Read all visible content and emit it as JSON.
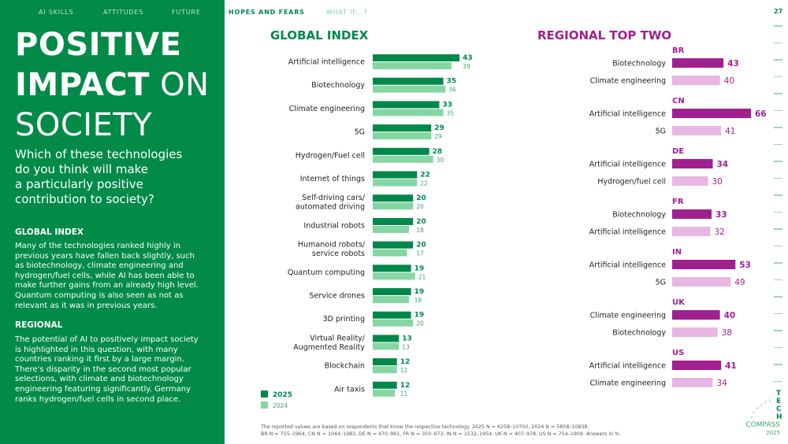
{
  "nav": {
    "items": [
      "AI SKILLS",
      "ATTITUDES",
      "FUTURE",
      "HOPES AND FEARS",
      "WHAT IF...?"
    ],
    "active": "HOPES AND FEARS"
  },
  "page_number": "27",
  "sidebar": {
    "title_bold_1": "POSITIVE",
    "title_bold_2": "IMPACT",
    "title_light_1": " ON",
    "title_light_2": "SOCIETY",
    "question": "Which of these technologies\ndo you think will make\na particularly positive\ncontribution to society?",
    "global_heading": "GLOBAL INDEX",
    "global_text": "Many of the technologies ranked highly in\nprevious years have fallen back slightly, such\nas biotechnology, climate engineering and\nhydrogen/fuel cells, while AI has been able to\nmake further gains from an already high level.\nQuantum computing is also seen as not as\nrelevant as it was in previous years.",
    "regional_heading": "REGIONAL",
    "regional_text": "The potential of AI to positively impact society\nis highlighted in this question, with many\ncountries ranking it first by a large margin.\nThere's disparity in the second most popular\nselections, with climate and biotechnology\nengineering featuring significantly. Germany\nranks hydrogen/fuel cells in second place."
  },
  "colors": {
    "green_dark": "#00884a",
    "green_light": "#86d6a4",
    "purple_dark": "#a1208f",
    "purple_light": "#e8b6e2",
    "sidebar_bg": "#018a48"
  },
  "chart_data": [
    {
      "type": "bar",
      "orientation": "horizontal",
      "title": "GLOBAL INDEX",
      "categories": [
        "Artificial intelligence",
        "Biotechnology",
        "Climate engineering",
        "5G",
        "Hydrogen/Fuel cell",
        "Internet of things",
        "Self-driving cars/\nautomated driving",
        "Industrial robots",
        "Humanoid robots/\nservice robots",
        "Quantum computing",
        "Service drones",
        "3D printing",
        "Virtual Reality/\nAugmented Reality",
        "Blockchain",
        "Air taxis"
      ],
      "series": [
        {
          "name": "2025",
          "values": [
            43,
            35,
            33,
            29,
            28,
            22,
            20,
            20,
            20,
            19,
            19,
            19,
            13,
            12,
            12
          ]
        },
        {
          "name": "2024",
          "values": [
            39,
            36,
            35,
            29,
            30,
            22,
            20,
            18,
            17,
            21,
            18,
            20,
            13,
            12,
            11
          ]
        }
      ],
      "legend": "bottom-left",
      "unit": "%"
    },
    {
      "type": "bar",
      "orientation": "horizontal",
      "title": "REGIONAL TOP TWO",
      "groups": [
        {
          "region": "BR",
          "items": [
            {
              "label": "Biotechnology",
              "value": 43
            },
            {
              "label": "Climate engineering",
              "value": 40
            }
          ]
        },
        {
          "region": "CN",
          "items": [
            {
              "label": "Artificial intelligence",
              "value": 66
            },
            {
              "label": "5G",
              "value": 41
            }
          ]
        },
        {
          "region": "DE",
          "items": [
            {
              "label": "Artificial intelligence",
              "value": 34
            },
            {
              "label": "Hydrogen/fuel cell",
              "value": 30
            }
          ]
        },
        {
          "region": "FR",
          "items": [
            {
              "label": "Biotechnology",
              "value": 33
            },
            {
              "label": "Artificial intelligence",
              "value": 32
            }
          ]
        },
        {
          "region": "IN",
          "items": [
            {
              "label": "Artificial intelligence",
              "value": 53
            },
            {
              "label": "5G",
              "value": 49
            }
          ]
        },
        {
          "region": "UK",
          "items": [
            {
              "label": "Climate engineering",
              "value": 40
            },
            {
              "label": "Biotechnology",
              "value": 38
            }
          ]
        },
        {
          "region": "US",
          "items": [
            {
              "label": "Artificial intelligence",
              "value": 41
            },
            {
              "label": "Climate engineering",
              "value": 34
            }
          ]
        }
      ],
      "unit": "%"
    }
  ],
  "footnote": "The reported values are based on respondents that know the respective technology. 2025 N = 6258–10700, 2024 N = 5858–10838.\nBR N = 755–1964, CN N = 1044–1983, DE N = 470–991, FR N = 350–973, IN N = 1532–1954, UK N = 407–978, US N = 754–1909. Answers in %.",
  "logo": {
    "vertical": "TECH",
    "word": "COMPASS",
    "year": "2025"
  }
}
